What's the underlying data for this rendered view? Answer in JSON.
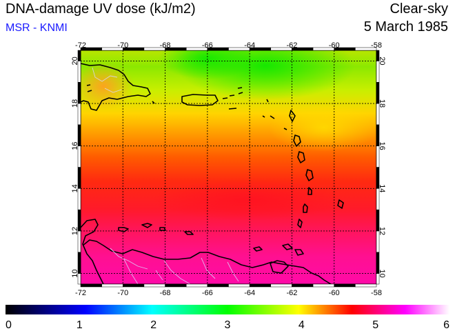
{
  "header": {
    "title": "DNA-damage UV dose (kJ/m2)",
    "credit": "MSR - KNMI",
    "sky": "Clear-sky",
    "date": "5 March 1985"
  },
  "map": {
    "lon_ticks": [
      "-72",
      "-70",
      "-68",
      "-66",
      "-64",
      "-62",
      "-60",
      "-58"
    ],
    "lat_ticks": [
      "10",
      "12",
      "14",
      "16",
      "18",
      "20"
    ],
    "lon_range": [
      -72,
      -58
    ],
    "lat_range": [
      9.5,
      20.5
    ],
    "grid": true,
    "colors": {
      "dose_high": "#ff0aa0",
      "dose_mid": "#ff1a1a",
      "dose_low": "#33e600"
    }
  },
  "colorbar": {
    "labels": [
      "0",
      "1",
      "2",
      "3",
      "4",
      "5",
      "6"
    ],
    "range": [
      0,
      6
    ],
    "colors": [
      "#000000",
      "#0000ff",
      "#00ffff",
      "#00ff00",
      "#ffff00",
      "#ff0000",
      "#ff00ff",
      "#ffffff"
    ]
  }
}
